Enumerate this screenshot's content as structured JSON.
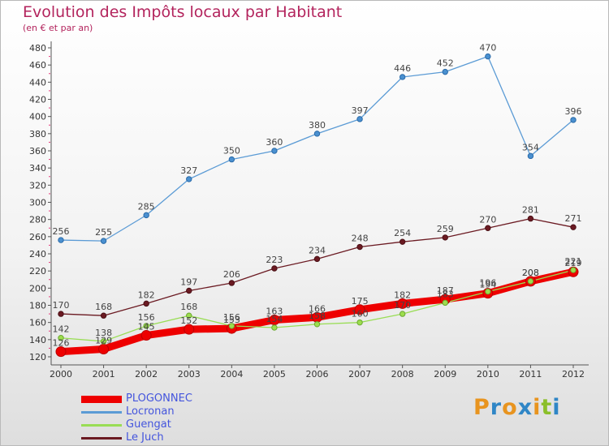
{
  "title": "Evolution des Impôts locaux par Habitant",
  "subtitle": "(en € et par an)",
  "logo": {
    "letters": [
      "P",
      "r",
      "o",
      "x",
      "i",
      "t",
      "i"
    ],
    "colors": [
      "#e8941f",
      "#2f86c6",
      "#e8941f",
      "#2f86c6",
      "#e8941f",
      "#8bbf2a",
      "#2f86c6"
    ]
  },
  "chart_data": {
    "type": "line",
    "x": [
      "2000",
      "2001",
      "2002",
      "2003",
      "2004",
      "2005",
      "2006",
      "2007",
      "2008",
      "2009",
      "2010",
      "2011",
      "2012"
    ],
    "ylim": [
      120,
      480
    ],
    "yticks": [
      120,
      140,
      160,
      180,
      200,
      220,
      240,
      260,
      280,
      300,
      320,
      340,
      360,
      380,
      400,
      420,
      440,
      460,
      480
    ],
    "grid": false,
    "legend_position": "bottom-left",
    "series": [
      {
        "name": "PLOGONNEC",
        "color": "#ee0000",
        "values": [
          126,
          129,
          145,
          152,
          153,
          163,
          166,
          175,
          182,
          187,
          194,
          208,
          219
        ]
      },
      {
        "name": "Locronan",
        "color": "#5b9bd5",
        "values": [
          256,
          255,
          285,
          327,
          350,
          360,
          380,
          397,
          446,
          452,
          470,
          354,
          396
        ]
      },
      {
        "name": "Guengat",
        "color": "#99dd55",
        "values": [
          142,
          138,
          156,
          168,
          156,
          154,
          158,
          160,
          170,
          183,
          196,
          208,
          221
        ]
      },
      {
        "name": "Le Juch",
        "color": "#6b1a22",
        "values": [
          170,
          168,
          182,
          197,
          206,
          223,
          234,
          248,
          254,
          259,
          270,
          281,
          271
        ]
      }
    ]
  }
}
